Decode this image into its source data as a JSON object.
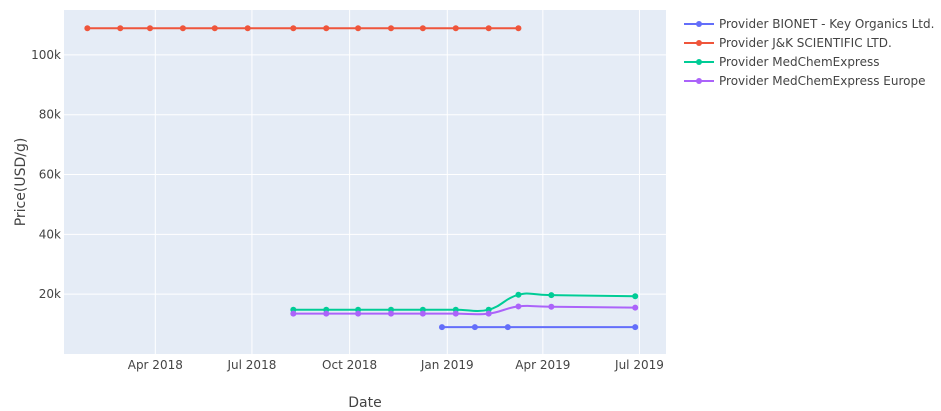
{
  "chart_data": {
    "type": "line",
    "xlabel": "Date",
    "ylabel": "Price(USD/g)",
    "xlim": [
      "2018-01-05",
      "2019-07-26"
    ],
    "ylim": [
      0,
      115000
    ],
    "grid": true,
    "legend_position": "right",
    "x_ticks": [
      {
        "date": "2018-04-01",
        "label": "Apr 2018"
      },
      {
        "date": "2018-07-01",
        "label": "Jul 2018"
      },
      {
        "date": "2018-10-01",
        "label": "Oct 2018"
      },
      {
        "date": "2019-01-01",
        "label": "Jan 2019"
      },
      {
        "date": "2019-04-01",
        "label": "Apr 2019"
      },
      {
        "date": "2019-07-01",
        "label": "Jul 2019"
      }
    ],
    "y_ticks": [
      {
        "value": 20000,
        "label": "20k"
      },
      {
        "value": 40000,
        "label": "40k"
      },
      {
        "value": 60000,
        "label": "60k"
      },
      {
        "value": 80000,
        "label": "80k"
      },
      {
        "value": 100000,
        "label": "100k"
      }
    ],
    "series": [
      {
        "name": "Provider BIONET - Key Organics Ltd.",
        "color": "#636efa",
        "x": [
          "2018-12-27",
          "2019-01-27",
          "2019-02-27",
          "2019-06-27"
        ],
        "y": [
          9000,
          9000,
          9000,
          9000
        ]
      },
      {
        "name": "Provider J&K SCIENTIFIC LTD.",
        "color": "#ef553b",
        "x": [
          "2018-01-27",
          "2018-02-27",
          "2018-03-27",
          "2018-04-27",
          "2018-05-27",
          "2018-06-27",
          "2018-08-09",
          "2018-09-09",
          "2018-10-09",
          "2018-11-09",
          "2018-12-09",
          "2019-01-09",
          "2019-02-09",
          "2019-03-09"
        ],
        "y": [
          108900,
          108900,
          108900,
          108900,
          108900,
          108900,
          108900,
          108900,
          108900,
          108900,
          108900,
          108900,
          108900,
          108900
        ]
      },
      {
        "name": "Provider MedChemExpress",
        "color": "#00cc96",
        "x": [
          "2018-08-09",
          "2018-09-09",
          "2018-10-09",
          "2018-11-09",
          "2018-12-09",
          "2019-01-09",
          "2019-02-09",
          "2019-03-09",
          "2019-04-09",
          "2019-06-27"
        ],
        "y": [
          14800,
          14800,
          14800,
          14800,
          14800,
          14800,
          14800,
          19800,
          19700,
          19300
        ]
      },
      {
        "name": "Provider MedChemExpress Europe",
        "color": "#ab63fa",
        "x": [
          "2018-08-09",
          "2018-09-09",
          "2018-10-09",
          "2018-11-09",
          "2018-12-09",
          "2019-01-09",
          "2019-02-09",
          "2019-03-09",
          "2019-04-09",
          "2019-06-27"
        ],
        "y": [
          13500,
          13500,
          13500,
          13500,
          13500,
          13500,
          13500,
          15900,
          15800,
          15500
        ]
      }
    ]
  }
}
